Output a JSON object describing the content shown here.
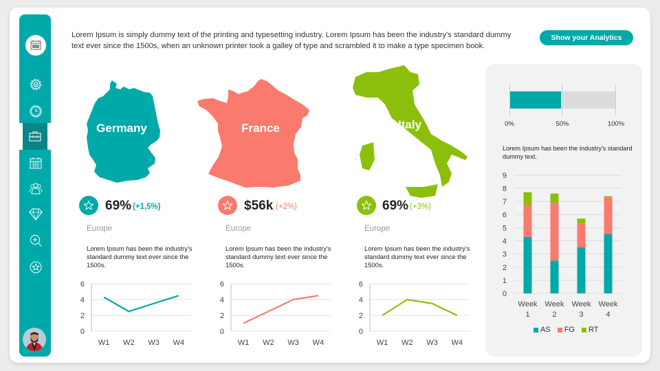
{
  "header": {
    "intro_text": "Lorem Ipsum is simply dummy text of the printing and typesetting industry. Lorem Ipsum has been the industry's standard dummy text ever since the 1500s, when an unknown printer took a galley of type and scrambled it to make a type specimen book.",
    "analytics_button": "Show your Analytics"
  },
  "sidebar": {
    "items": [
      {
        "icon": "calendar-icon",
        "active": false
      },
      {
        "icon": "gear-icon",
        "active": false
      },
      {
        "icon": "clock-icon",
        "active": false
      },
      {
        "icon": "briefcase-icon",
        "active": true
      },
      {
        "icon": "calendar-grid-icon",
        "active": false
      },
      {
        "icon": "users-icon",
        "active": false
      },
      {
        "icon": "diamond-icon",
        "active": false
      },
      {
        "icon": "zoom-in-icon",
        "active": false
      },
      {
        "icon": "star-circle-icon",
        "active": false
      }
    ],
    "avatar": "user-avatar"
  },
  "colors": {
    "teal": "#00a9a9",
    "teal_dark": "#0b8686",
    "salmon": "#fa7b6e",
    "green": "#8cbf0c",
    "panel_bg": "#f2f2f2"
  },
  "countries": [
    {
      "name": "Germany",
      "value": "69%",
      "delta": "(+1,5%)",
      "region": "Europe",
      "desc": "Lorem Ipsum has been the industry's standard dummy text ever since the 1500s.",
      "icon": "star-icon"
    },
    {
      "name": "France",
      "value": "$56k",
      "delta": "(+2%)",
      "region": "Europe",
      "desc": "Lorem Ipsum has been the industry's standard dummy text ever since the 1500s.",
      "icon": "star-icon"
    },
    {
      "name": "Italy",
      "value": "69%",
      "delta": "(+3%)",
      "region": "Europe",
      "desc": "Lorem Ipsum has been the industry's standard dummy text ever since the 1500s.",
      "icon": "star-icon"
    }
  ],
  "panel": {
    "progress_ticks": [
      "0%",
      "50%",
      "100%"
    ],
    "progress_value": 49,
    "desc": "Lorem Ipsum has been the industry's standard dummy text.",
    "legend": [
      "AS",
      "FG",
      "RT"
    ]
  },
  "chart_data": [
    {
      "type": "line",
      "title": "Germany",
      "categories": [
        "W1",
        "W2",
        "W3",
        "W4"
      ],
      "values": [
        4.3,
        2.5,
        3.5,
        4.5
      ],
      "ylim": [
        0,
        6
      ],
      "yticks": [
        0,
        2,
        4,
        6
      ],
      "color": "#00a9a9",
      "grid": true
    },
    {
      "type": "line",
      "title": "France",
      "categories": [
        "W1",
        "W2",
        "W3",
        "W4"
      ],
      "values": [
        1,
        2.5,
        4,
        4.5
      ],
      "ylim": [
        0,
        6
      ],
      "yticks": [
        0,
        2,
        4,
        6
      ],
      "color": "#fa7b6e",
      "grid": true
    },
    {
      "type": "line",
      "title": "Italy",
      "categories": [
        "W1",
        "W2",
        "W3",
        "W4"
      ],
      "values": [
        2,
        4,
        3.5,
        2
      ],
      "ylim": [
        0,
        6
      ],
      "yticks": [
        0,
        2,
        4,
        6
      ],
      "color": "#8cbf0c",
      "grid": true
    },
    {
      "type": "bar",
      "title": "Progress",
      "orientation": "horizontal",
      "values": [
        49
      ],
      "xticks": [
        "0%",
        "50%",
        "100%"
      ],
      "xlim": [
        0,
        100
      ]
    },
    {
      "type": "bar",
      "stacked": true,
      "categories": [
        "Week 1",
        "Week 2",
        "Week 3",
        "Week 4"
      ],
      "series": [
        {
          "name": "AS",
          "values": [
            4.3,
            2.5,
            3.5,
            4.5
          ],
          "color": "#00a9a9"
        },
        {
          "name": "FG",
          "values": [
            2.4,
            4.4,
            1.8,
            2.8
          ],
          "color": "#fa7b6e"
        },
        {
          "name": "RT",
          "values": [
            1.0,
            0.7,
            0.4,
            0.1
          ],
          "color": "#8cbf0c"
        }
      ],
      "ylim": [
        0,
        9
      ],
      "yticks": [
        0,
        1,
        2,
        3,
        4,
        5,
        6,
        7,
        8,
        9
      ],
      "legend_position": "bottom",
      "grid": true
    }
  ]
}
